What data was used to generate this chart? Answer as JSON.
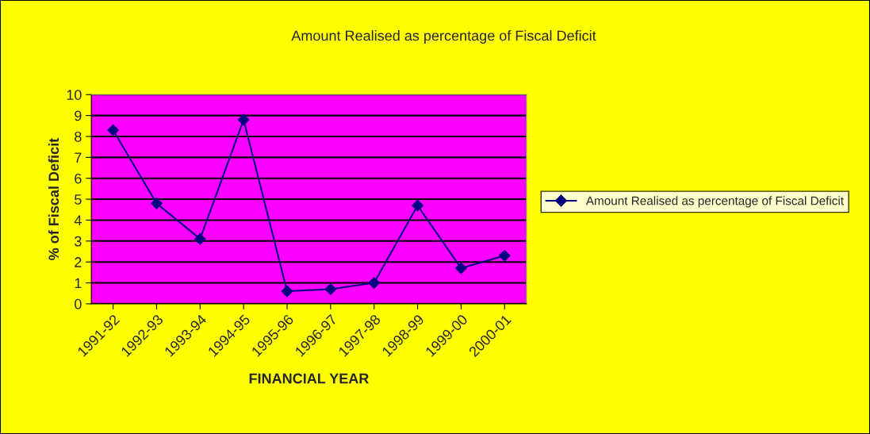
{
  "chart_data": {
    "type": "line",
    "title": "Amount Realised as percentage of Fiscal Deficit",
    "xlabel": "FINANCIAL YEAR",
    "ylabel": "% of Fiscal Deficit",
    "categories": [
      "1991-92",
      "1992-93",
      "1993-94",
      "1994-95",
      "1995-96",
      "1996-97",
      "1997-98",
      "1998-99",
      "1999-00",
      "2000-01"
    ],
    "series": [
      {
        "name": "Amount Realised as percentage of Fiscal Deficit",
        "color": "#000080",
        "values": [
          8.3,
          4.8,
          3.1,
          8.8,
          0.6,
          0.7,
          1.0,
          4.7,
          1.7,
          2.3
        ]
      }
    ],
    "ylim": [
      0,
      10
    ],
    "yticks": [
      0,
      1,
      2,
      3,
      4,
      5,
      6,
      7,
      8,
      9,
      10
    ],
    "grid": "y",
    "legend": "right",
    "marker": "diamond",
    "line_style": "solid"
  }
}
